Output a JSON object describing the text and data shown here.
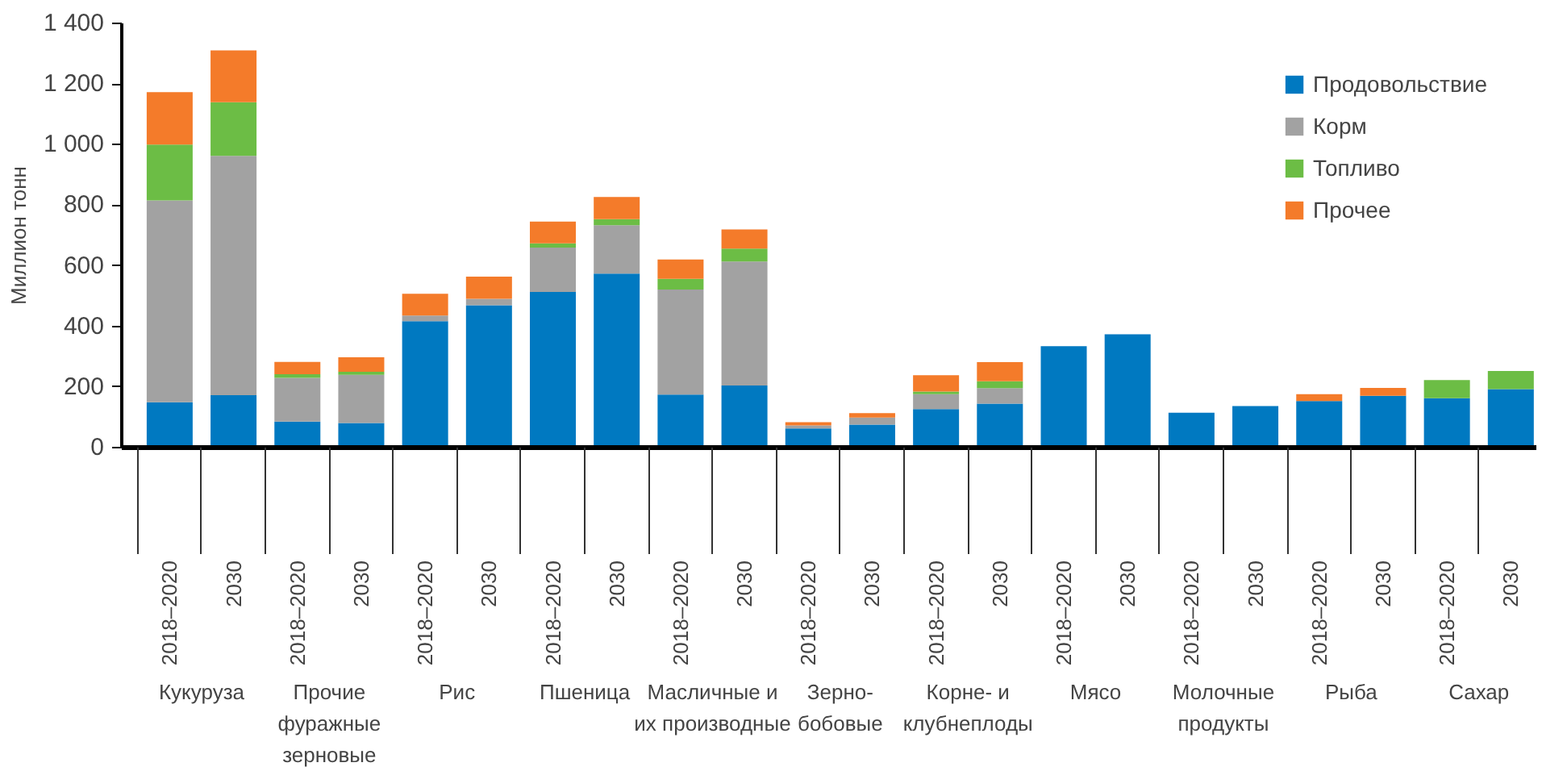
{
  "chart_data": {
    "type": "bar",
    "stacked": true,
    "ylabel": "Миллион тонн",
    "categories": [
      "2018–2020",
      "2030",
      "2018–2020",
      "2030",
      "2018–2020",
      "2030",
      "2018–2020",
      "2030",
      "2018–2020",
      "2030",
      "2018–2020",
      "2030",
      "2018–2020",
      "2030",
      "2018–2020",
      "2030",
      "2018–2020",
      "2030",
      "2018–2020",
      "2030",
      "2018–2020",
      "2030"
    ],
    "annotations": [
      "Кукуруза",
      "Прочие\nфуражные\nзерновые",
      "Рис",
      "Пшеница",
      "Масличные и\nих производные",
      "Зерно-\nбобовые",
      "Корне- и\nклубнеплоды",
      "Мясо",
      "Молочные\nпродукты",
      "Рыба",
      "Сахар"
    ],
    "series": [
      {
        "name": "Продовольствие",
        "color": "#0079c1",
        "values": [
          150,
          173,
          86,
          81,
          417,
          470,
          514,
          574,
          175,
          205,
          63,
          76,
          127,
          145,
          335,
          374,
          115,
          137,
          154,
          171,
          163,
          193
        ]
      },
      {
        "name": "Корм",
        "color": "#a2a2a2",
        "values": [
          666,
          790,
          144,
          159,
          19,
          21,
          146,
          160,
          347,
          409,
          10,
          23,
          49,
          51,
          null,
          null,
          null,
          null,
          null,
          null,
          null,
          null
        ]
      },
      {
        "name": "Топливо",
        "color": "#6cbd45",
        "values": [
          184,
          177,
          12,
          10,
          null,
          null,
          14,
          20,
          35,
          43,
          null,
          null,
          9,
          23,
          null,
          null,
          null,
          null,
          null,
          null,
          60,
          60
        ]
      },
      {
        "name": "Прочее",
        "color": "#f47b2a",
        "values": [
          173,
          171,
          41,
          48,
          72,
          73,
          72,
          73,
          64,
          63,
          11,
          15,
          54,
          63,
          null,
          null,
          null,
          null,
          22,
          26,
          null,
          null
        ]
      }
    ],
    "ylim": [
      0,
      1400
    ],
    "yticks": [
      0,
      200,
      400,
      600,
      800,
      {
        "value": 1000,
        "label": "1 000"
      },
      {
        "value": 1200,
        "label": "1 200"
      },
      {
        "value": 1400,
        "label": "1 400"
      }
    ],
    "grid": false,
    "legend": "top right"
  }
}
